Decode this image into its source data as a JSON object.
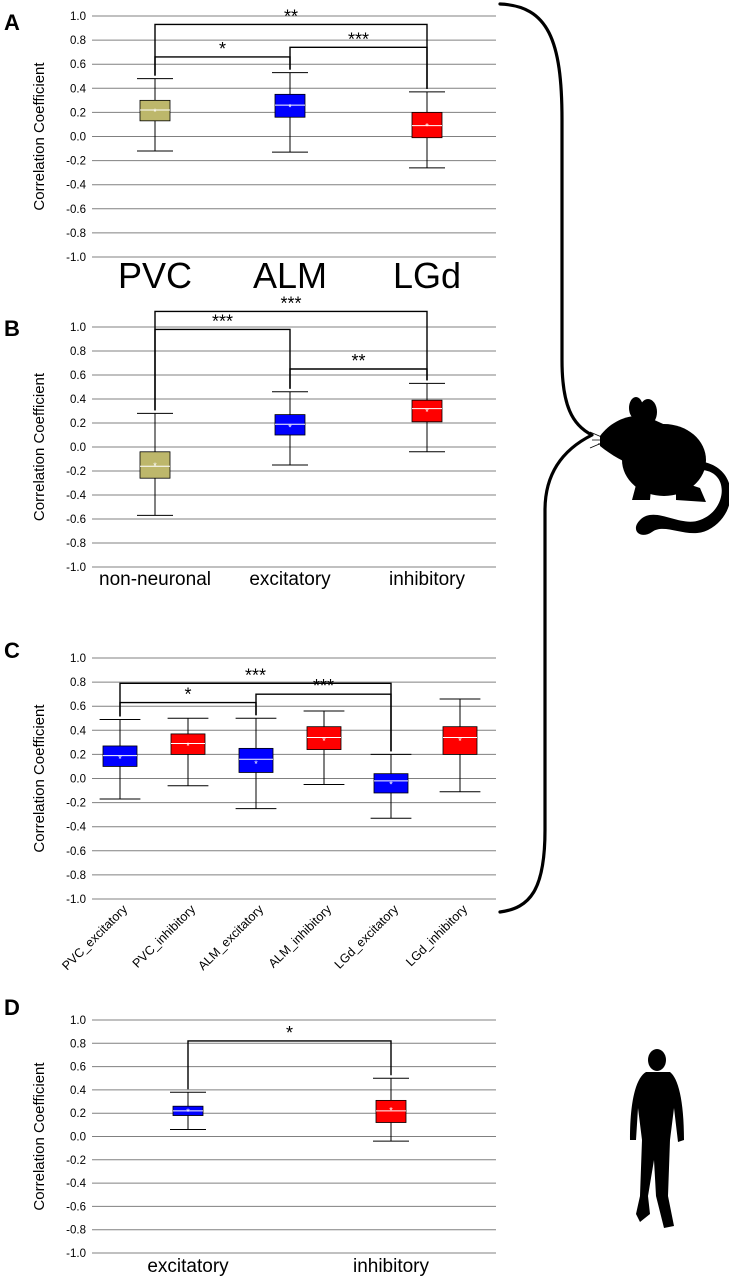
{
  "colors": {
    "olive": "#BDB76B",
    "blue": "#0000FF",
    "red": "#FF0000",
    "grid": "#808080",
    "ink": "#000000"
  },
  "icons": [
    "mouse-silhouette-icon",
    "human-silhouette-icon",
    "curly-brace-icon"
  ],
  "chart_data": [
    {
      "panel": "A",
      "type": "box",
      "ylabel": "Correlation Coefficient",
      "ylim": [
        -1.0,
        1.0
      ],
      "yticks": [
        "1.0",
        "0.8",
        "0.6",
        "0.4",
        "0.2",
        "0.0",
        "-0.2",
        "-0.4",
        "-0.6",
        "-0.8",
        "-1.0"
      ],
      "categories": [
        "PVC",
        "ALM",
        "LGd"
      ],
      "boxes": [
        {
          "label": "PVC",
          "color": "olive",
          "whisker_low": -0.12,
          "q1": 0.13,
          "median": 0.22,
          "q3": 0.3,
          "whisker_high": 0.48,
          "mean": 0.21
        },
        {
          "label": "ALM",
          "color": "blue",
          "whisker_low": -0.13,
          "q1": 0.16,
          "median": 0.26,
          "q3": 0.35,
          "whisker_high": 0.53,
          "mean": 0.25
        },
        {
          "label": "LGd",
          "color": "red",
          "whisker_low": -0.26,
          "q1": -0.01,
          "median": 0.09,
          "q3": 0.2,
          "whisker_high": 0.37,
          "mean": 0.09
        }
      ],
      "significance": [
        {
          "from": 0,
          "to": 2,
          "y": 0.93,
          "label": "**"
        },
        {
          "from": 0,
          "to": 1,
          "y": 0.66,
          "label": "*"
        },
        {
          "from": 1,
          "to": 2,
          "y": 0.74,
          "label": "***"
        }
      ]
    },
    {
      "panel": "B",
      "type": "box",
      "ylabel": "Correlation Coefficient",
      "ylim": [
        -1.0,
        1.0
      ],
      "yticks": [
        "1.0",
        "0.8",
        "0.6",
        "0.4",
        "0.2",
        "0.0",
        "-0.2",
        "-0.4",
        "-0.6",
        "-0.8",
        "-1.0"
      ],
      "categories": [
        "non-neuronal",
        "excitatory",
        "inhibitory"
      ],
      "boxes": [
        {
          "label": "non-neuronal",
          "color": "olive",
          "whisker_low": -0.57,
          "q1": -0.26,
          "median": -0.16,
          "q3": -0.04,
          "whisker_high": 0.28,
          "mean": -0.15
        },
        {
          "label": "excitatory",
          "color": "blue",
          "whisker_low": -0.15,
          "q1": 0.1,
          "median": 0.19,
          "q3": 0.27,
          "whisker_high": 0.46,
          "mean": 0.17
        },
        {
          "label": "inhibitory",
          "color": "red",
          "whisker_low": -0.04,
          "q1": 0.21,
          "median": 0.32,
          "q3": 0.39,
          "whisker_high": 0.53,
          "mean": 0.3
        }
      ],
      "significance": [
        {
          "from": 0,
          "to": 2,
          "y": 1.13,
          "label": "***"
        },
        {
          "from": 0,
          "to": 1,
          "y": 0.98,
          "label": "***"
        },
        {
          "from": 1,
          "to": 2,
          "y": 0.65,
          "label": "**"
        }
      ]
    },
    {
      "panel": "C",
      "type": "box",
      "ylabel": "Correlation Coefficient",
      "ylim": [
        -1.0,
        1.0
      ],
      "yticks": [
        "1.0",
        "0.8",
        "0.6",
        "0.4",
        "0.2",
        "0.0",
        "-0.2",
        "-0.4",
        "-0.6",
        "-0.8",
        "-1.0"
      ],
      "categories": [
        "PVC_excitatory",
        "PVC_inhibitory",
        "ALM_excitatory",
        "ALM_inhibitory",
        "LGd_excitatory",
        "LGd_inhibitory"
      ],
      "boxes": [
        {
          "label": "PVC_excitatory",
          "color": "blue",
          "whisker_low": -0.17,
          "q1": 0.1,
          "median": 0.19,
          "q3": 0.27,
          "whisker_high": 0.49,
          "mean": 0.17
        },
        {
          "label": "PVC_inhibitory",
          "color": "red",
          "whisker_low": -0.06,
          "q1": 0.2,
          "median": 0.29,
          "q3": 0.37,
          "whisker_high": 0.5,
          "mean": 0.28
        },
        {
          "label": "ALM_excitatory",
          "color": "blue",
          "whisker_low": -0.25,
          "q1": 0.05,
          "median": 0.16,
          "q3": 0.25,
          "whisker_high": 0.5,
          "mean": 0.13
        },
        {
          "label": "ALM_inhibitory",
          "color": "red",
          "whisker_low": -0.05,
          "q1": 0.24,
          "median": 0.34,
          "q3": 0.43,
          "whisker_high": 0.56,
          "mean": 0.32
        },
        {
          "label": "LGd_excitatory",
          "color": "blue",
          "whisker_low": -0.33,
          "q1": -0.12,
          "median": -0.02,
          "q3": 0.04,
          "whisker_high": 0.2,
          "mean": -0.04
        },
        {
          "label": "LGd_inhibitory",
          "color": "red",
          "whisker_low": -0.11,
          "q1": 0.2,
          "median": 0.34,
          "q3": 0.43,
          "whisker_high": 0.66,
          "mean": 0.32
        }
      ],
      "significance": [
        {
          "from": 0,
          "to": 4,
          "y": 0.79,
          "label": "***"
        },
        {
          "from": 0,
          "to": 2,
          "y": 0.63,
          "label": "*"
        },
        {
          "from": 2,
          "to": 4,
          "y": 0.7,
          "label": "***"
        }
      ]
    },
    {
      "panel": "D",
      "type": "box",
      "ylabel": "Correlation Coefficient",
      "ylim": [
        -1.0,
        1.0
      ],
      "yticks": [
        "1.0",
        "0.8",
        "0.6",
        "0.4",
        "0.2",
        "0.0",
        "-0.2",
        "-0.4",
        "-0.6",
        "-0.8",
        "-1.0"
      ],
      "categories": [
        "excitatory",
        "inhibitory"
      ],
      "boxes": [
        {
          "label": "excitatory",
          "color": "blue",
          "whisker_low": 0.06,
          "q1": 0.18,
          "median": 0.22,
          "q3": 0.26,
          "whisker_high": 0.38,
          "mean": 0.22
        },
        {
          "label": "inhibitory",
          "color": "red",
          "whisker_low": -0.04,
          "q1": 0.12,
          "median": 0.22,
          "q3": 0.31,
          "whisker_high": 0.5,
          "mean": 0.23
        }
      ],
      "significance": [
        {
          "from": 0,
          "to": 1,
          "y": 0.82,
          "label": "*"
        }
      ]
    }
  ]
}
